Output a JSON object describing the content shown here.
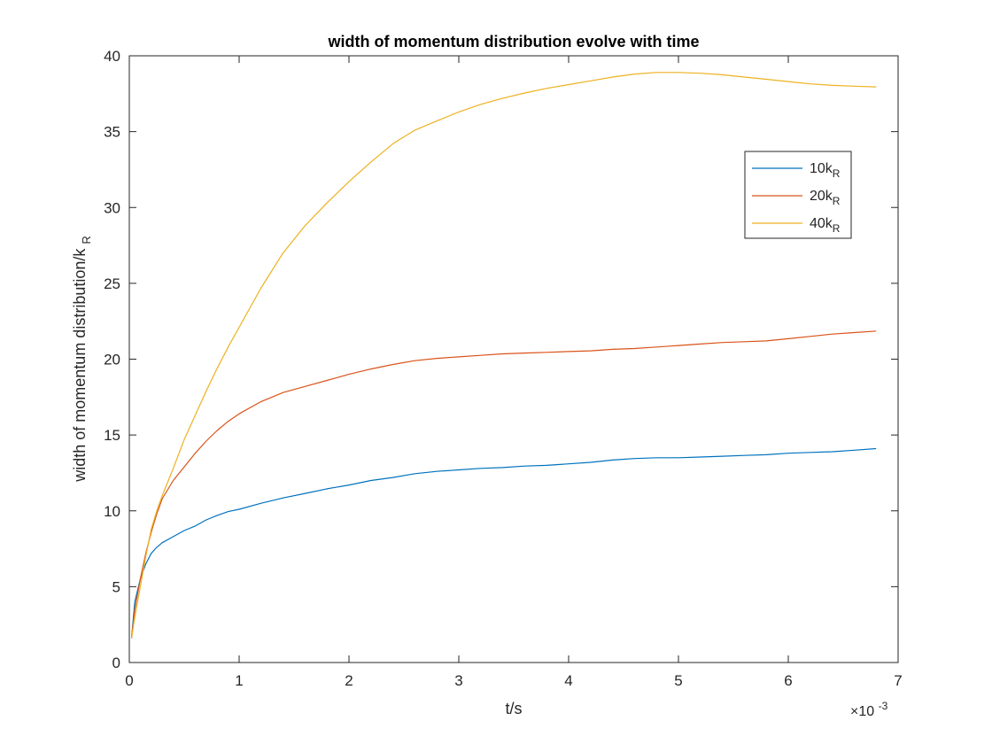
{
  "chart_data": {
    "type": "line",
    "title": "width of momentum distribution evolve with time",
    "xlabel": "t/s",
    "ylabel": "width of momentum distribution/k",
    "ylabel_subscript": "R",
    "x_exponent_label": "×10",
    "x_exponent_power": "-3",
    "xlim": [
      0,
      7
    ],
    "ylim": [
      0,
      40
    ],
    "xticks": [
      "0",
      "1",
      "2",
      "3",
      "4",
      "5",
      "6",
      "7"
    ],
    "yticks": [
      "0",
      "5",
      "10",
      "15",
      "20",
      "25",
      "30",
      "35",
      "40"
    ],
    "x_scale": 0.001,
    "grid": false,
    "legend_position": "top-right",
    "series": [
      {
        "name": "10k",
        "name_subscript": "R",
        "color": "#0072BD",
        "x": [
          0.02,
          0.05,
          0.1,
          0.15,
          0.2,
          0.25,
          0.3,
          0.4,
          0.5,
          0.6,
          0.7,
          0.8,
          0.9,
          1.0,
          1.2,
          1.4,
          1.6,
          1.8,
          2.0,
          2.2,
          2.4,
          2.6,
          2.8,
          3.0,
          3.2,
          3.4,
          3.6,
          3.8,
          4.0,
          4.2,
          4.4,
          4.6,
          4.8,
          5.0,
          5.2,
          5.4,
          5.6,
          5.8,
          6.0,
          6.2,
          6.4,
          6.6,
          6.8
        ],
        "values": [
          1.6,
          4.0,
          5.5,
          6.5,
          7.2,
          7.6,
          7.9,
          8.3,
          8.7,
          9.0,
          9.4,
          9.7,
          9.95,
          10.1,
          10.5,
          10.85,
          11.15,
          11.45,
          11.7,
          12.0,
          12.2,
          12.45,
          12.6,
          12.7,
          12.8,
          12.85,
          12.95,
          13.0,
          13.1,
          13.2,
          13.35,
          13.45,
          13.5,
          13.5,
          13.55,
          13.6,
          13.65,
          13.7,
          13.8,
          13.85,
          13.9,
          14.0,
          14.1
        ]
      },
      {
        "name": "20k",
        "name_subscript": "R",
        "color": "#D95319",
        "x": [
          0.02,
          0.05,
          0.1,
          0.15,
          0.2,
          0.25,
          0.3,
          0.4,
          0.5,
          0.6,
          0.7,
          0.8,
          0.9,
          1.0,
          1.2,
          1.4,
          1.6,
          1.8,
          2.0,
          2.2,
          2.4,
          2.6,
          2.8,
          3.0,
          3.2,
          3.4,
          3.6,
          3.8,
          4.0,
          4.2,
          4.4,
          4.6,
          4.8,
          5.0,
          5.2,
          5.4,
          5.6,
          5.8,
          6.0,
          6.2,
          6.4,
          6.6,
          6.8
        ],
        "values": [
          1.6,
          3.5,
          5.5,
          7.2,
          8.6,
          9.8,
          10.8,
          12.0,
          12.9,
          13.8,
          14.6,
          15.3,
          15.9,
          16.4,
          17.2,
          17.8,
          18.2,
          18.6,
          19.0,
          19.35,
          19.65,
          19.9,
          20.05,
          20.15,
          20.25,
          20.35,
          20.4,
          20.45,
          20.5,
          20.55,
          20.65,
          20.7,
          20.8,
          20.9,
          21.0,
          21.1,
          21.15,
          21.2,
          21.35,
          21.5,
          21.65,
          21.75,
          21.85
        ]
      },
      {
        "name": "40k",
        "name_subscript": "R",
        "color": "#EDB120",
        "x": [
          0.02,
          0.05,
          0.1,
          0.15,
          0.2,
          0.25,
          0.3,
          0.4,
          0.5,
          0.6,
          0.7,
          0.8,
          0.9,
          1.0,
          1.2,
          1.4,
          1.6,
          1.8,
          2.0,
          2.2,
          2.4,
          2.6,
          2.8,
          3.0,
          3.2,
          3.4,
          3.6,
          3.8,
          4.0,
          4.2,
          4.4,
          4.6,
          4.8,
          5.0,
          5.2,
          5.4,
          5.6,
          5.8,
          6.0,
          6.2,
          6.4,
          6.6,
          6.8
        ],
        "values": [
          1.6,
          3.0,
          5.0,
          7.0,
          8.8,
          10.0,
          11.0,
          12.8,
          14.7,
          16.3,
          17.9,
          19.4,
          20.8,
          22.1,
          24.7,
          27.0,
          28.8,
          30.3,
          31.7,
          33.0,
          34.2,
          35.1,
          35.7,
          36.3,
          36.8,
          37.2,
          37.55,
          37.85,
          38.1,
          38.35,
          38.6,
          38.8,
          38.9,
          38.9,
          38.85,
          38.75,
          38.6,
          38.45,
          38.3,
          38.15,
          38.05,
          38.0,
          37.95
        ]
      }
    ]
  }
}
